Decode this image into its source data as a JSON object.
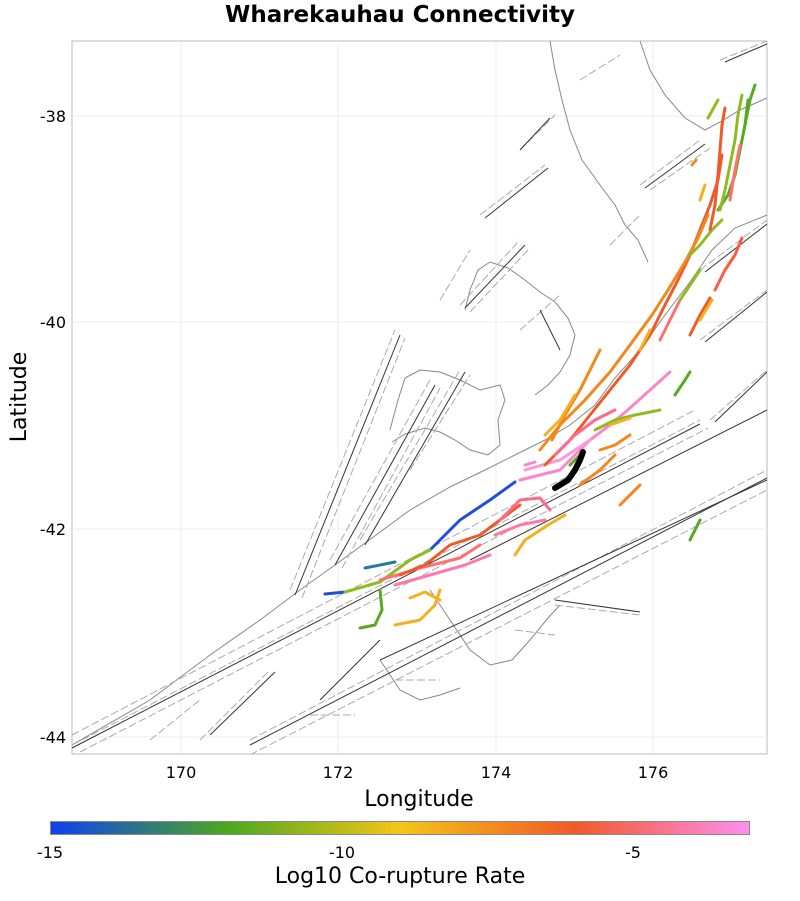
{
  "title": "Wharekauhau Connectivity",
  "x_axis": {
    "label": "Longitude",
    "ticks": [
      "170",
      "172",
      "174",
      "176"
    ]
  },
  "y_axis": {
    "label": "Latitude",
    "ticks": [
      "-38",
      "-40",
      "-42",
      "-44"
    ]
  },
  "colorbar": {
    "label": "Log10 Co-rupture Rate",
    "ticks": [
      "-15",
      "-10",
      "-5"
    ],
    "colors": [
      "#1040f0",
      "#4aa820",
      "#f5c518",
      "#f05a28",
      "#ff8ef0"
    ]
  },
  "colors": {
    "coastline": "#777777",
    "fault_trace": "#222222",
    "fault_box": "#aaaaaa",
    "grid": "#e6e6e6",
    "target_fault": "#000000"
  }
}
